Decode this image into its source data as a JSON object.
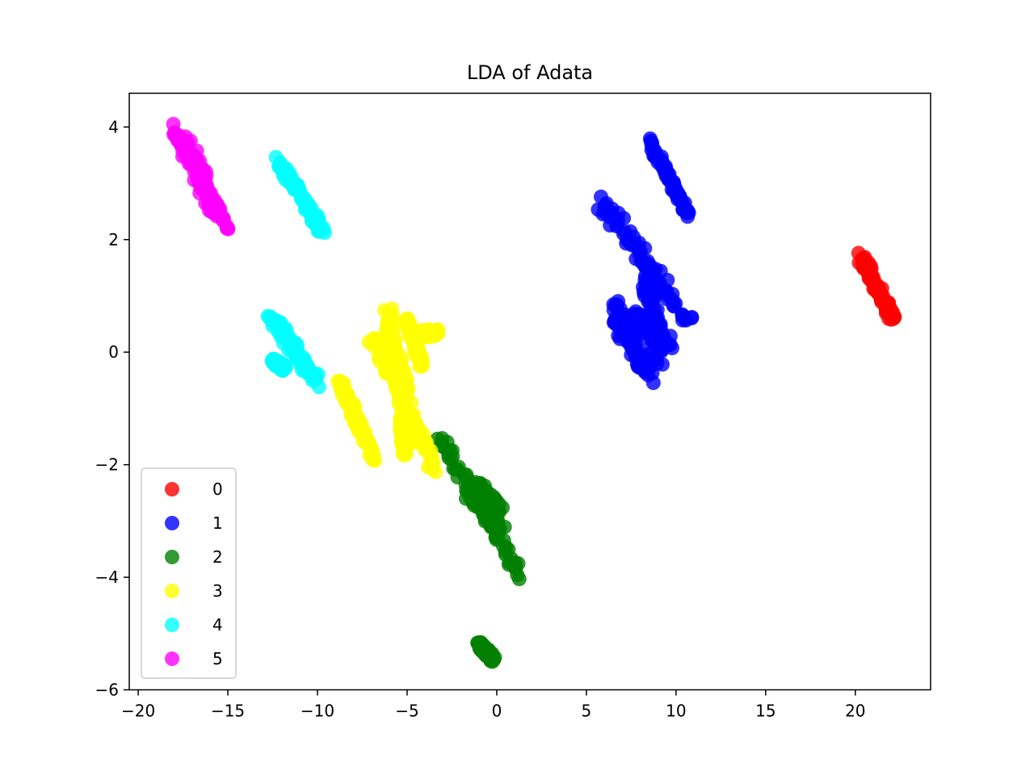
{
  "chart_data": {
    "type": "scatter",
    "title": "LDA of Adata",
    "xlabel": "",
    "ylabel": "",
    "xlim": [
      -20.5,
      24.2
    ],
    "ylim": [
      -6.0,
      4.6
    ],
    "xticks": [
      -20,
      -15,
      -10,
      -5,
      0,
      5,
      10,
      15,
      20
    ],
    "yticks": [
      -6,
      -4,
      -2,
      0,
      2,
      4
    ],
    "xtick_labels": [
      "−20",
      "−15",
      "−10",
      "−5",
      "0",
      "5",
      "10",
      "15",
      "20"
    ],
    "ytick_labels": [
      "−6",
      "−4",
      "−2",
      "0",
      "2",
      "4"
    ],
    "grid": false,
    "legend_position": "lower-left",
    "marker_alpha": 0.8,
    "series": [
      {
        "name": "0",
        "color": "#ff0000",
        "segments": [
          {
            "from": [
              20.3,
              1.7
            ],
            "to": [
              22.1,
              0.6
            ],
            "spread": 0.15
          }
        ]
      },
      {
        "name": "1",
        "color": "#0000ff",
        "segments": [
          {
            "from": [
              8.5,
              3.75
            ],
            "to": [
              10.7,
              2.45
            ],
            "spread": 0.12
          },
          {
            "from": [
              5.8,
              2.7
            ],
            "to": [
              10.7,
              0.55
            ],
            "spread": 0.25
          },
          {
            "from": [
              6.4,
              0.85
            ],
            "to": [
              8.5,
              -0.45
            ],
            "spread": 0.3
          },
          {
            "from": [
              7.3,
              0.6
            ],
            "to": [
              9.6,
              0.2
            ],
            "spread": 0.3
          },
          {
            "from": [
              8.4,
              1.5
            ],
            "to": [
              9.0,
              -0.05
            ],
            "spread": 0.35
          }
        ]
      },
      {
        "name": "2",
        "color": "#008000",
        "segments": [
          {
            "from": [
              -3.2,
              -1.5
            ],
            "to": [
              1.3,
              -3.95
            ],
            "spread": 0.2
          },
          {
            "from": [
              -1.5,
              -2.4
            ],
            "to": [
              0.2,
              -3.0
            ],
            "spread": 0.35
          },
          {
            "from": [
              -1.0,
              -5.2
            ],
            "to": [
              -0.2,
              -5.45
            ],
            "spread": 0.1
          }
        ]
      },
      {
        "name": "3",
        "color": "#ffff00",
        "segments": [
          {
            "from": [
              -8.8,
              -0.5
            ],
            "to": [
              -6.8,
              -1.9
            ],
            "spread": 0.15
          },
          {
            "from": [
              -7.0,
              0.3
            ],
            "to": [
              -3.4,
              -2.1
            ],
            "spread": 0.2
          },
          {
            "from": [
              -6.1,
              0.7
            ],
            "to": [
              -4.7,
              -1.5
            ],
            "spread": 0.3
          },
          {
            "from": [
              -5.0,
              0.6
            ],
            "to": [
              -4.2,
              -0.25
            ],
            "spread": 0.12
          },
          {
            "from": [
              -4.8,
              0.3
            ],
            "to": [
              -3.3,
              0.35
            ],
            "spread": 0.12
          },
          {
            "from": [
              -5.3,
              -1.2
            ],
            "to": [
              -5.1,
              -1.8
            ],
            "spread": 0.15
          }
        ]
      },
      {
        "name": "4",
        "color": "#00ffff",
        "segments": [
          {
            "from": [
              -12.2,
              3.4
            ],
            "to": [
              -9.7,
              2.15
            ],
            "spread": 0.15
          },
          {
            "from": [
              -12.6,
              0.65
            ],
            "to": [
              -10.0,
              -0.55
            ],
            "spread": 0.18
          },
          {
            "from": [
              -12.5,
              -0.15
            ],
            "to": [
              -11.8,
              -0.3
            ],
            "spread": 0.1
          }
        ]
      },
      {
        "name": "5",
        "color": "#ff00ff",
        "segments": [
          {
            "from": [
              -18.1,
              4.0
            ],
            "to": [
              -15.0,
              2.2
            ],
            "spread": 0.15
          },
          {
            "from": [
              -17.3,
              3.7
            ],
            "to": [
              -15.8,
              2.5
            ],
            "spread": 0.3
          }
        ]
      }
    ]
  }
}
